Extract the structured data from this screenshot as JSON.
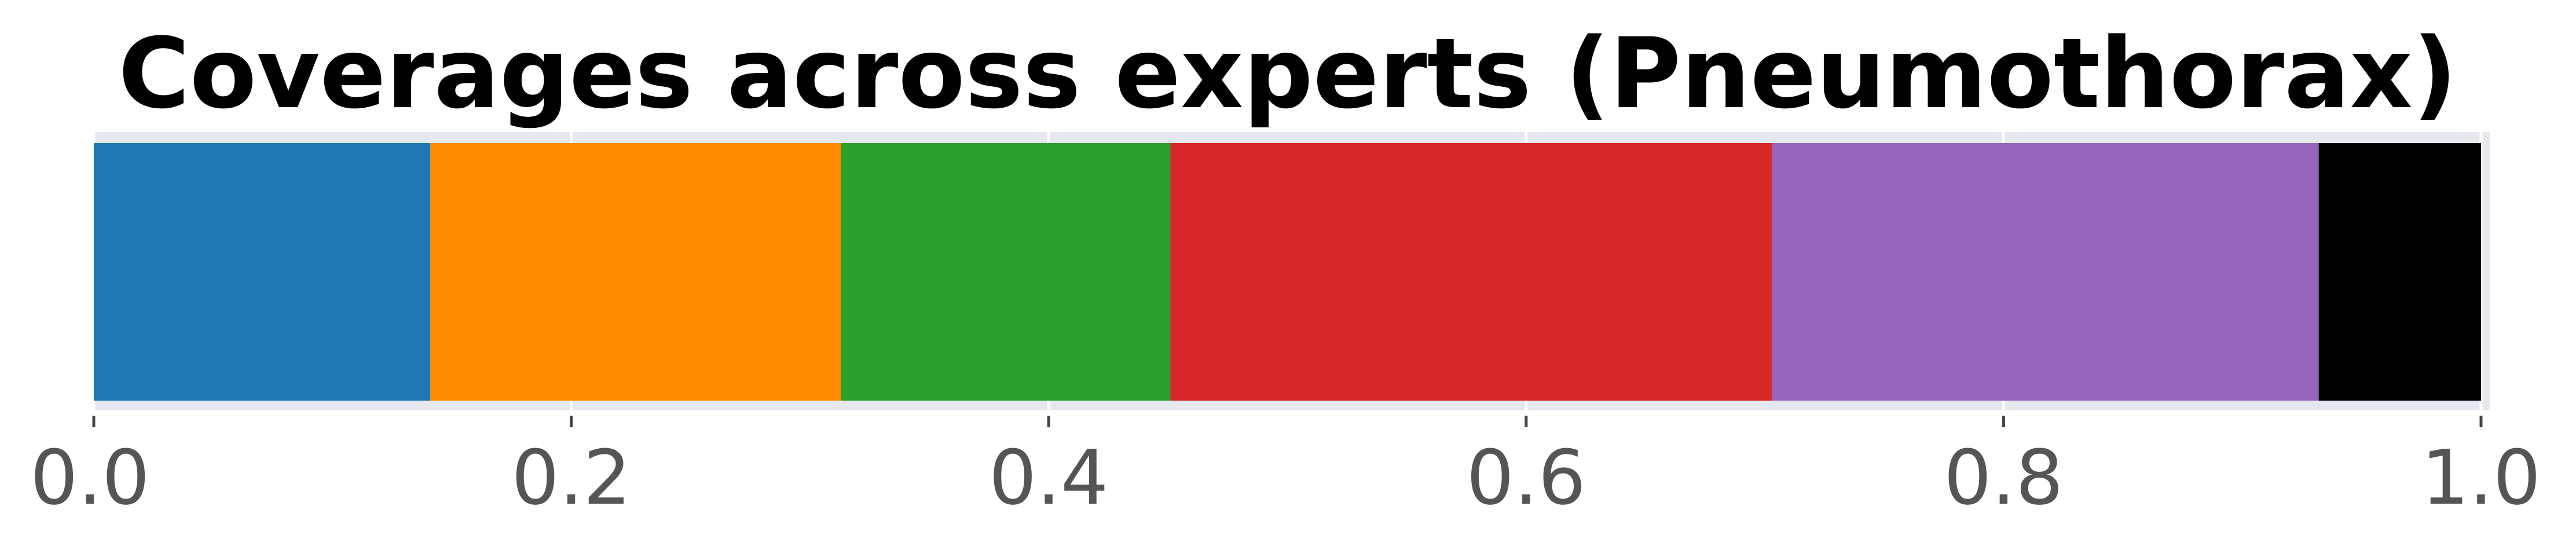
{
  "chart_data": {
    "type": "bar",
    "orientation": "horizontal-stacked",
    "title": "Coverages across experts (Pneumothorax)",
    "xlabel": "",
    "ylabel": "",
    "xlim": [
      0,
      1
    ],
    "x_ticks": [
      0.0,
      0.2,
      0.4,
      0.6,
      0.8,
      1.0
    ],
    "x_tick_labels": [
      "0.0",
      "0.2",
      "0.4",
      "0.6",
      "0.8",
      "1.0"
    ],
    "grid": true,
    "legend": "none",
    "segments": [
      {
        "value": 0.141,
        "color": "#1f77b4"
      },
      {
        "value": 0.172,
        "color": "#ff8c00"
      },
      {
        "value": 0.138,
        "color": "#2ca02c"
      },
      {
        "value": 0.252,
        "color": "#d62728"
      },
      {
        "value": 0.229,
        "color": "#9467bd"
      },
      {
        "value": 0.068,
        "color": "#000000"
      }
    ]
  },
  "colors": {
    "background": "#ffffff",
    "axes_frame": "#e5e9ef",
    "grid": "#ffffff",
    "tick_label": "#555555",
    "title": "#000000"
  }
}
